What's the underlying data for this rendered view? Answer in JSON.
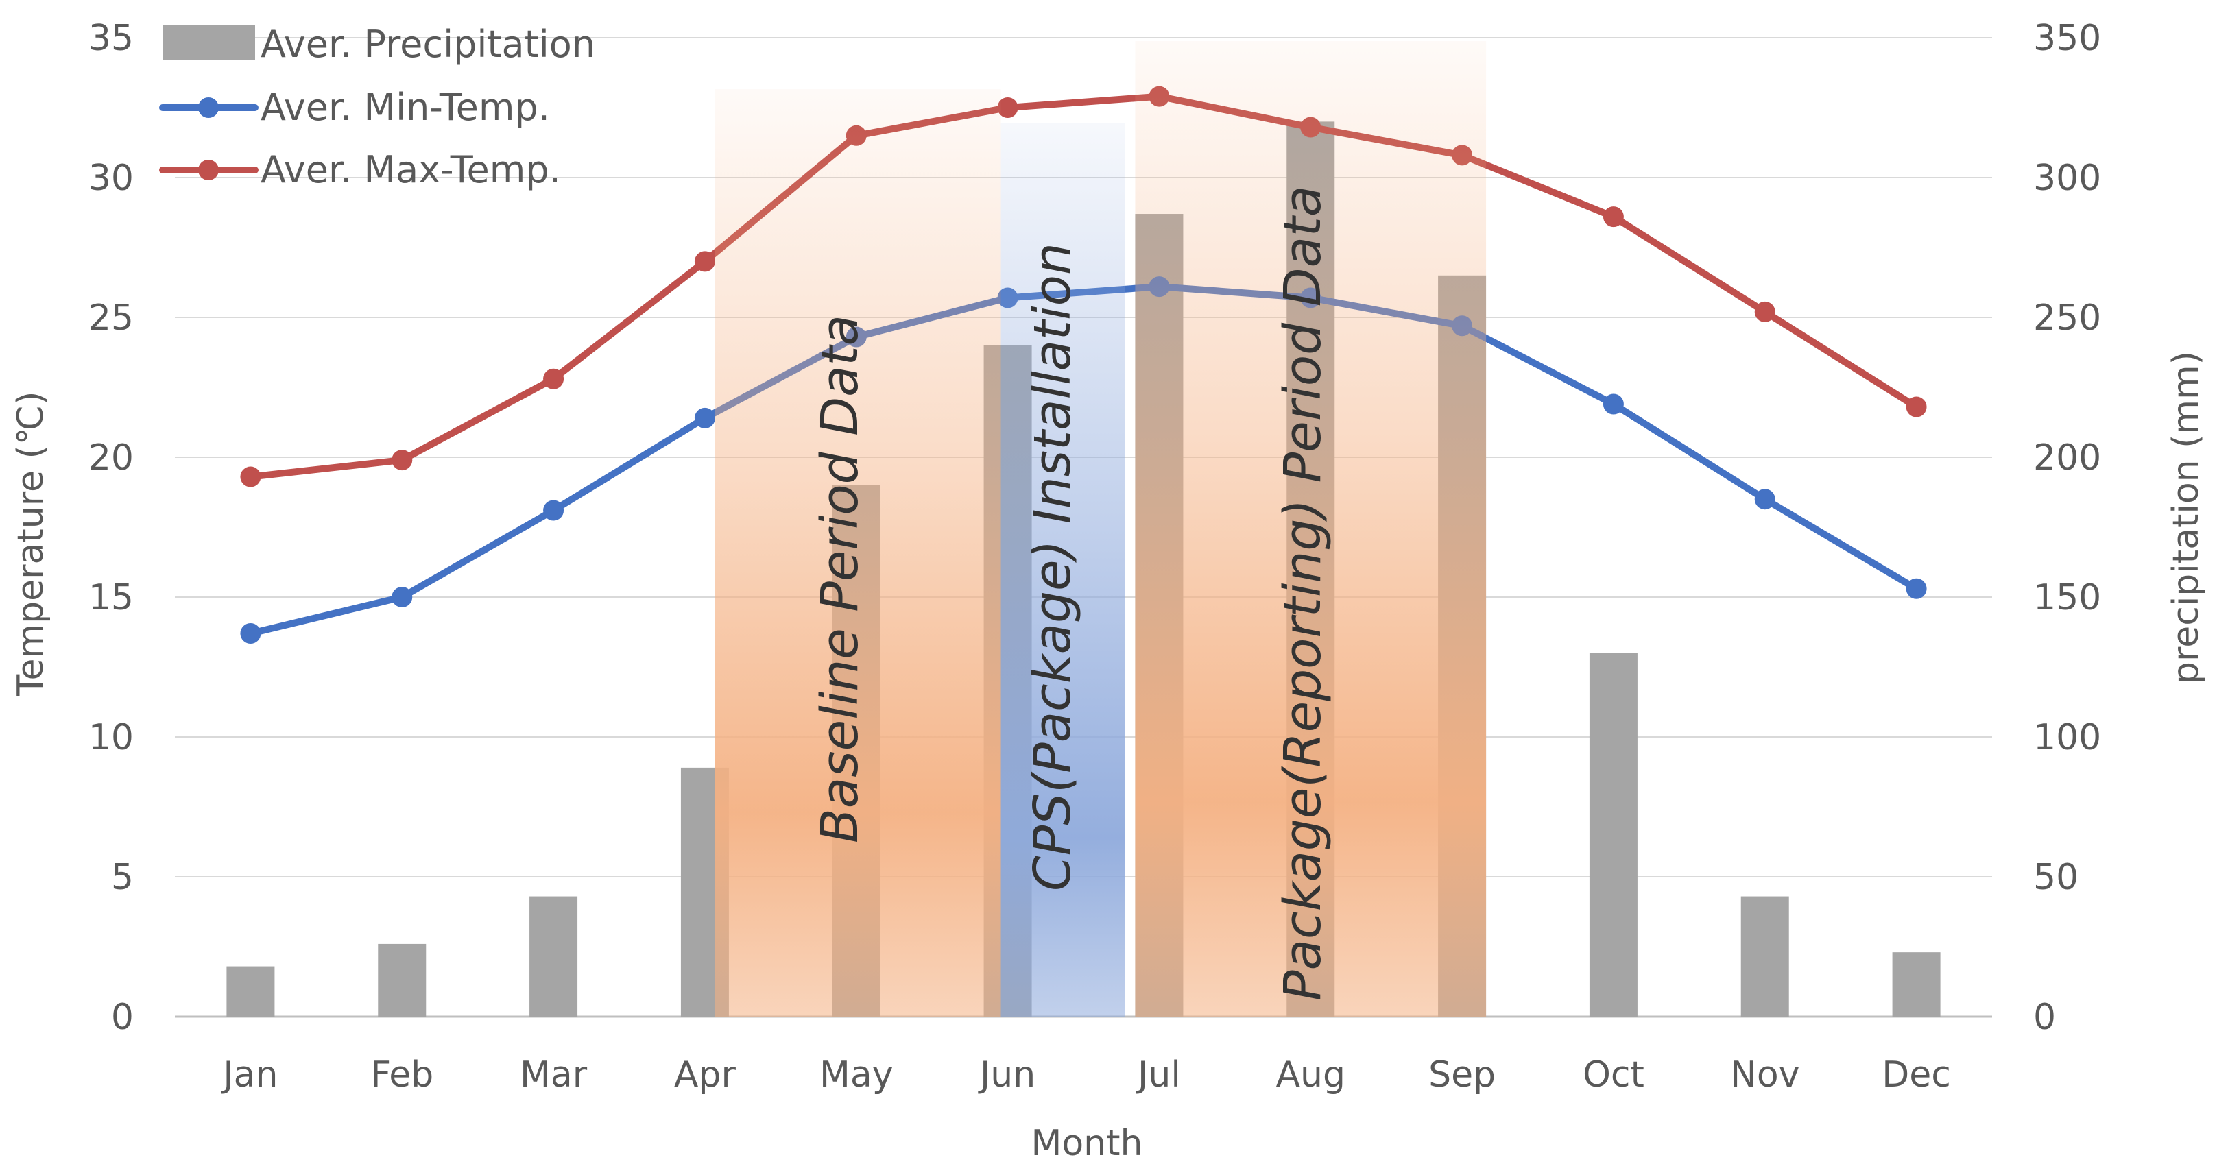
{
  "chart_data": {
    "type": "bar+line",
    "categories": [
      "Jan",
      "Feb",
      "Mar",
      "Apr",
      "May",
      "Jun",
      "Jul",
      "Aug",
      "Sep",
      "Oct",
      "Nov",
      "Dec"
    ],
    "series": [
      {
        "name": "Aver. Precipitation",
        "kind": "bar",
        "axis": "right",
        "color": "#a5a5a5",
        "values": [
          18,
          26,
          43,
          89,
          190,
          240,
          287,
          320,
          265,
          130,
          43,
          23
        ]
      },
      {
        "name": "Aver. Min-Temp.",
        "kind": "line",
        "axis": "left",
        "color": "#4472c4",
        "values": [
          13.7,
          15.0,
          18.1,
          21.4,
          24.3,
          25.7,
          26.1,
          25.7,
          24.7,
          21.9,
          18.5,
          15.3
        ]
      },
      {
        "name": "Aver. Max-Temp.",
        "kind": "line",
        "axis": "left",
        "color": "#c0504d",
        "values": [
          19.3,
          19.9,
          22.8,
          27.0,
          31.5,
          32.5,
          32.9,
          31.8,
          30.8,
          28.6,
          25.2,
          21.8
        ]
      }
    ],
    "xlabel": "Month",
    "ylabel": "Temperature (℃)",
    "ylabel_right": "precipitation (mm)",
    "ylim": [
      0,
      35
    ],
    "ylim_right": [
      0,
      350
    ],
    "yticks": [
      "0",
      "5",
      "10",
      "15",
      "20",
      "25",
      "30",
      "35"
    ],
    "yticks_right": [
      "0",
      "50",
      "100",
      "150",
      "200",
      "250",
      "300",
      "350"
    ],
    "grid": true,
    "legend_position": "top-left",
    "periods": [
      {
        "label": "Baseline Period Data",
        "start_month": "Apr",
        "end_month": "Jun",
        "color": "#f4b183"
      },
      {
        "label": "CPS(Package) Installation",
        "start_month": "Jun",
        "end_month": "Jul",
        "color": "#8faadc"
      },
      {
        "label": "Package(Reporting) Period Data",
        "start_month": "Jul",
        "end_month": "Sep",
        "color": "#f4b183"
      }
    ]
  }
}
